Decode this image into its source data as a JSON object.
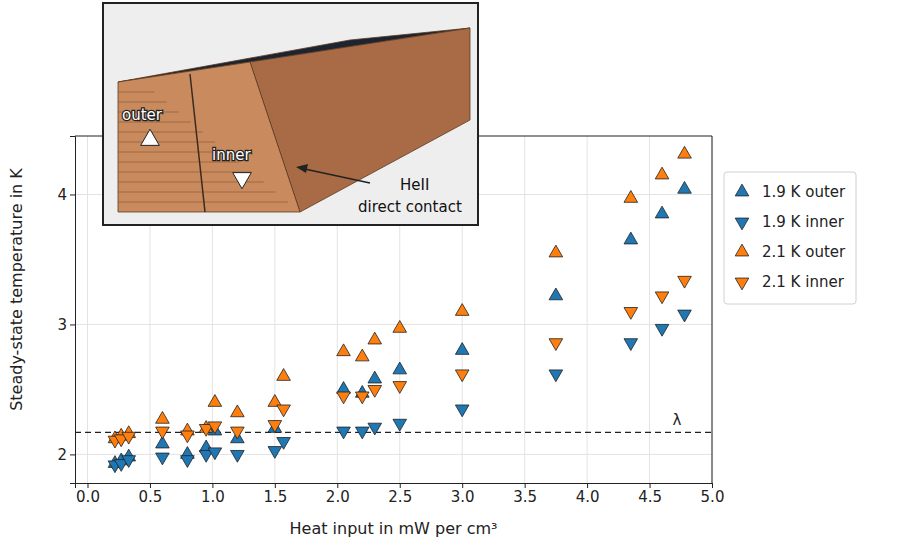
{
  "chart_data": {
    "type": "scatter",
    "x_label": "Heat input in mW per cm³",
    "y_label": "Steady-state temperature in K",
    "xlim": [
      -0.1,
      5.0
    ],
    "ylim": [
      1.78,
      4.45
    ],
    "xticks": [
      {
        "value": 0,
        "label": "0.0"
      },
      {
        "value": 0.5,
        "label": "0.5"
      },
      {
        "value": 1,
        "label": "1.0"
      },
      {
        "value": 1.5,
        "label": "1.5"
      },
      {
        "value": 2,
        "label": "2.0"
      },
      {
        "value": 2.5,
        "label": "2.5"
      },
      {
        "value": 3,
        "label": "3.0"
      },
      {
        "value": 3.5,
        "label": "3.5"
      },
      {
        "value": 4,
        "label": "4.0"
      },
      {
        "value": 4.5,
        "label": "4.5"
      },
      {
        "value": 5,
        "label": "5.0"
      }
    ],
    "yticks": [
      2,
      3,
      4
    ],
    "grid": true,
    "legend": "right",
    "reference_lines": [
      {
        "value": 2.17,
        "label": "λ",
        "line_style": "dashed"
      }
    ],
    "inset_labels": [
      "outer",
      "inner",
      "HeII",
      "direct contact"
    ],
    "series": [
      {
        "name": "1.9 K outer",
        "color": "#1f77b4",
        "marker": "triangle-up",
        "x": [
          0.22,
          0.27,
          0.33,
          0.6,
          0.8,
          0.95,
          1.02,
          1.2,
          1.5,
          2.05,
          2.2,
          2.3,
          2.5,
          3.0,
          3.75,
          4.35,
          4.6,
          4.78
        ],
        "values": [
          1.93,
          1.95,
          1.98,
          2.08,
          2.0,
          2.05,
          2.18,
          2.12,
          2.2,
          2.5,
          2.47,
          2.58,
          2.65,
          2.8,
          3.22,
          3.65,
          3.85,
          4.04
        ]
      },
      {
        "name": "1.9 K inner",
        "color": "#1f77b4",
        "marker": "triangle-down",
        "x": [
          0.22,
          0.27,
          0.33,
          0.6,
          0.8,
          0.95,
          1.02,
          1.2,
          1.5,
          1.57,
          2.05,
          2.2,
          2.3,
          2.5,
          3.0,
          3.75,
          4.35,
          4.6,
          4.78
        ],
        "values": [
          1.92,
          1.93,
          1.96,
          1.98,
          1.96,
          2.0,
          2.02,
          2.0,
          2.03,
          2.1,
          2.18,
          2.18,
          2.21,
          2.24,
          2.35,
          2.62,
          2.86,
          2.97,
          3.08
        ]
      },
      {
        "name": "2.1 K outer",
        "color": "#ff7f0e",
        "marker": "triangle-up",
        "x": [
          0.22,
          0.27,
          0.33,
          0.6,
          0.8,
          0.95,
          1.02,
          1.2,
          1.5,
          1.57,
          2.05,
          2.2,
          2.3,
          2.5,
          3.0,
          3.75,
          4.35,
          4.6,
          4.78
        ],
        "values": [
          2.12,
          2.14,
          2.16,
          2.27,
          2.18,
          2.2,
          2.4,
          2.32,
          2.4,
          2.6,
          2.79,
          2.75,
          2.88,
          2.97,
          3.1,
          3.55,
          3.97,
          4.15,
          4.31
        ]
      },
      {
        "name": "2.1 K inner",
        "color": "#ff7f0e",
        "marker": "triangle-down",
        "x": [
          0.22,
          0.27,
          0.33,
          0.6,
          0.8,
          0.95,
          1.02,
          1.2,
          1.5,
          1.57,
          2.05,
          2.2,
          2.3,
          2.5,
          3.0,
          3.75,
          4.35,
          4.6,
          4.78
        ],
        "values": [
          2.11,
          2.12,
          2.14,
          2.18,
          2.15,
          2.2,
          2.22,
          2.18,
          2.23,
          2.35,
          2.45,
          2.45,
          2.5,
          2.53,
          2.62,
          2.86,
          3.1,
          3.22,
          3.34
        ]
      }
    ]
  }
}
